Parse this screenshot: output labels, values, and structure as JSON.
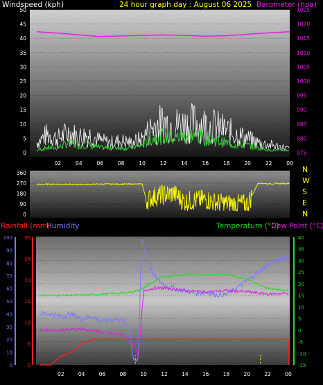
{
  "header": {
    "windspeed_label": "Windspeed (kph)",
    "title": "24 hour graph day : August 06 2025",
    "barometer_label": "Barometer (hpa)"
  },
  "colors": {
    "background": "#000000",
    "wind_gust": "#ffffff",
    "wind_avg": "#3ecf3e",
    "barometer": "#e020e0",
    "direction": "#ffff00",
    "rain": "#ff2020",
    "humidity": "#7b7bff",
    "temperature": "#22dd22",
    "dew_point": "#dd22dd",
    "yellow_text": "#ffff00"
  },
  "x_ticks": [
    "02",
    "04",
    "06",
    "08",
    "10",
    "12",
    "14",
    "16",
    "18",
    "20",
    "22",
    "00"
  ],
  "compass": [
    "N",
    "W",
    "S",
    "E",
    "N"
  ],
  "lower_labels": {
    "rainfall": "Rainfall (mm)",
    "humidity": "Humidity",
    "temperature": "Temperature (°C)",
    "dew_point": "Dew Point (°C)"
  },
  "chart_data": [
    {
      "type": "line",
      "panel": "wind-barometer",
      "xlabel": "hour",
      "y_left": {
        "label": "Windspeed (kph)",
        "range": [
          0,
          50
        ],
        "ticks": [
          0,
          5,
          10,
          15,
          20,
          25,
          30,
          35,
          40,
          45,
          50
        ]
      },
      "y_right": {
        "label": "Barometer (hpa)",
        "range": [
          975,
          1025
        ],
        "ticks": [
          975,
          980,
          985,
          990,
          995,
          1000,
          1005,
          1010,
          1015,
          1020,
          1025
        ]
      },
      "series": [
        {
          "name": "Windspeed",
          "axis": "left",
          "kind": "gust",
          "x": [
            0,
            1,
            2,
            3,
            4,
            5,
            6,
            7,
            8,
            9,
            10,
            11,
            12,
            13,
            14,
            15,
            16,
            17,
            18,
            19,
            20,
            21,
            22,
            23,
            24
          ],
          "y": [
            5,
            9,
            7,
            10,
            8,
            9,
            6,
            5,
            6,
            5,
            7,
            13,
            15,
            14,
            14,
            15,
            14,
            13,
            11,
            9,
            7,
            5,
            4,
            3,
            2
          ]
        },
        {
          "name": "Windspeed",
          "axis": "left",
          "kind": "average",
          "x": [
            0,
            1,
            2,
            3,
            4,
            5,
            6,
            7,
            8,
            9,
            10,
            11,
            12,
            13,
            14,
            15,
            16,
            17,
            18,
            19,
            20,
            21,
            22,
            23,
            24
          ],
          "y": [
            1,
            2,
            2,
            4,
            3,
            3,
            2,
            2,
            2,
            2,
            3,
            6,
            7,
            6,
            7,
            7,
            6,
            5,
            4,
            3,
            3,
            2,
            1,
            1,
            1
          ]
        },
        {
          "name": "Barometer",
          "axis": "right",
          "x": [
            0,
            2,
            4,
            6,
            8,
            10,
            12,
            14,
            16,
            18,
            20,
            22,
            24
          ],
          "y": [
            1017.3,
            1016.8,
            1016.2,
            1015.6,
            1015.8,
            1016.0,
            1016.2,
            1016.0,
            1015.7,
            1015.9,
            1016.4,
            1016.9,
            1017.3
          ]
        }
      ]
    },
    {
      "type": "line",
      "panel": "wind-direction",
      "y": {
        "range": [
          0,
          360
        ],
        "ticks": [
          0,
          90,
          180,
          270,
          360
        ]
      },
      "series": [
        {
          "name": "Wind direction",
          "x": [
            0,
            2,
            4,
            6,
            8,
            10,
            10.4,
            11,
            12,
            13,
            14,
            15,
            16,
            17,
            18,
            19,
            20,
            20.4,
            21,
            22,
            24
          ],
          "y": [
            260,
            262,
            258,
            262,
            262,
            262,
            120,
            150,
            170,
            180,
            110,
            120,
            130,
            100,
            95,
            90,
            90,
            160,
            270,
            265,
            268
          ]
        }
      ]
    },
    {
      "type": "line",
      "panel": "rain-humidity-temp",
      "y_rain": {
        "label": "Rainfall (mm)",
        "range": [
          0,
          30
        ],
        "ticks": [
          0,
          5,
          10,
          15,
          20,
          25,
          30
        ]
      },
      "y_hum": {
        "label": "Humidity",
        "range": [
          0,
          100
        ],
        "ticks": [
          0,
          10,
          20,
          30,
          40,
          50,
          60,
          70,
          80,
          90,
          100
        ]
      },
      "y_temp": {
        "label": "Temperature (°C)",
        "range": [
          -15,
          40
        ],
        "ticks": [
          -15,
          -10,
          -5,
          0,
          5,
          10,
          15,
          20,
          25,
          30,
          35,
          40
        ]
      },
      "series": [
        {
          "name": "Rainfall",
          "axis": "rain",
          "x": [
            0,
            1,
            1.5,
            2,
            2.5,
            3,
            3.5,
            4,
            4.5,
            5,
            24
          ],
          "y": [
            0,
            0,
            1,
            2,
            2.5,
            3,
            4,
            5,
            5.5,
            6,
            6
          ]
        },
        {
          "name": "Humidity",
          "axis": "hum",
          "x": [
            0,
            1,
            2,
            3,
            4,
            5,
            6,
            7,
            8,
            8.6,
            9,
            9.5,
            9.8,
            10,
            10.5,
            11,
            12,
            13,
            14,
            15,
            16,
            17,
            18,
            19,
            20,
            21,
            22,
            23,
            24
          ],
          "y": [
            40,
            40,
            38,
            40,
            36,
            38,
            34,
            36,
            35,
            30,
            5,
            3,
            100,
            95,
            80,
            70,
            62,
            60,
            58,
            56,
            57,
            55,
            55,
            60,
            66,
            72,
            78,
            82,
            85
          ]
        },
        {
          "name": "Temperature",
          "axis": "temp",
          "x": [
            0,
            2,
            4,
            6,
            8,
            9,
            10,
            11,
            12,
            14,
            16,
            18,
            20,
            21,
            22,
            24
          ],
          "y": [
            15,
            15,
            15,
            15.5,
            16,
            16.5,
            18,
            21,
            23,
            24,
            24,
            24,
            22,
            20,
            18,
            17
          ]
        },
        {
          "name": "Dew Point",
          "axis": "temp",
          "x": [
            0,
            2,
            4,
            6,
            8,
            8.6,
            9,
            9.5,
            10,
            11,
            12,
            14,
            16,
            18,
            20,
            21,
            22,
            24
          ],
          "y": [
            0,
            0,
            0.5,
            -1,
            -2,
            -6,
            -5,
            -12,
            17,
            18,
            18,
            17,
            16.5,
            17,
            16.5,
            16,
            15.5,
            16
          ]
        }
      ]
    }
  ]
}
